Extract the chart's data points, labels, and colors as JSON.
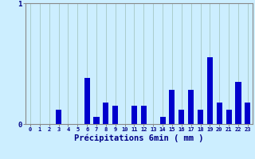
{
  "xlabel": "Précipitations 6min ( mm )",
  "categories": [
    0,
    1,
    2,
    3,
    4,
    5,
    6,
    7,
    8,
    9,
    10,
    11,
    12,
    13,
    14,
    15,
    16,
    17,
    18,
    19,
    20,
    21,
    22,
    23
  ],
  "values": [
    0,
    0,
    0,
    0.12,
    0,
    0,
    0.38,
    0.06,
    0.18,
    0.15,
    0,
    0.15,
    0.15,
    0,
    0.06,
    0.28,
    0.12,
    0.28,
    0.12,
    0.55,
    0.18,
    0.12,
    0.35,
    0.18
  ],
  "ylim": [
    0,
    1.0
  ],
  "yticks": [
    0,
    1
  ],
  "ytick_labels": [
    "0",
    "1"
  ],
  "bar_color": "#0000cc",
  "bg_color": "#cceeff",
  "grid_color": "#aacccc",
  "axis_color": "#888888",
  "text_color": "#000088",
  "bar_width": 0.6,
  "figsize": [
    3.2,
    2.0
  ],
  "dpi": 100
}
